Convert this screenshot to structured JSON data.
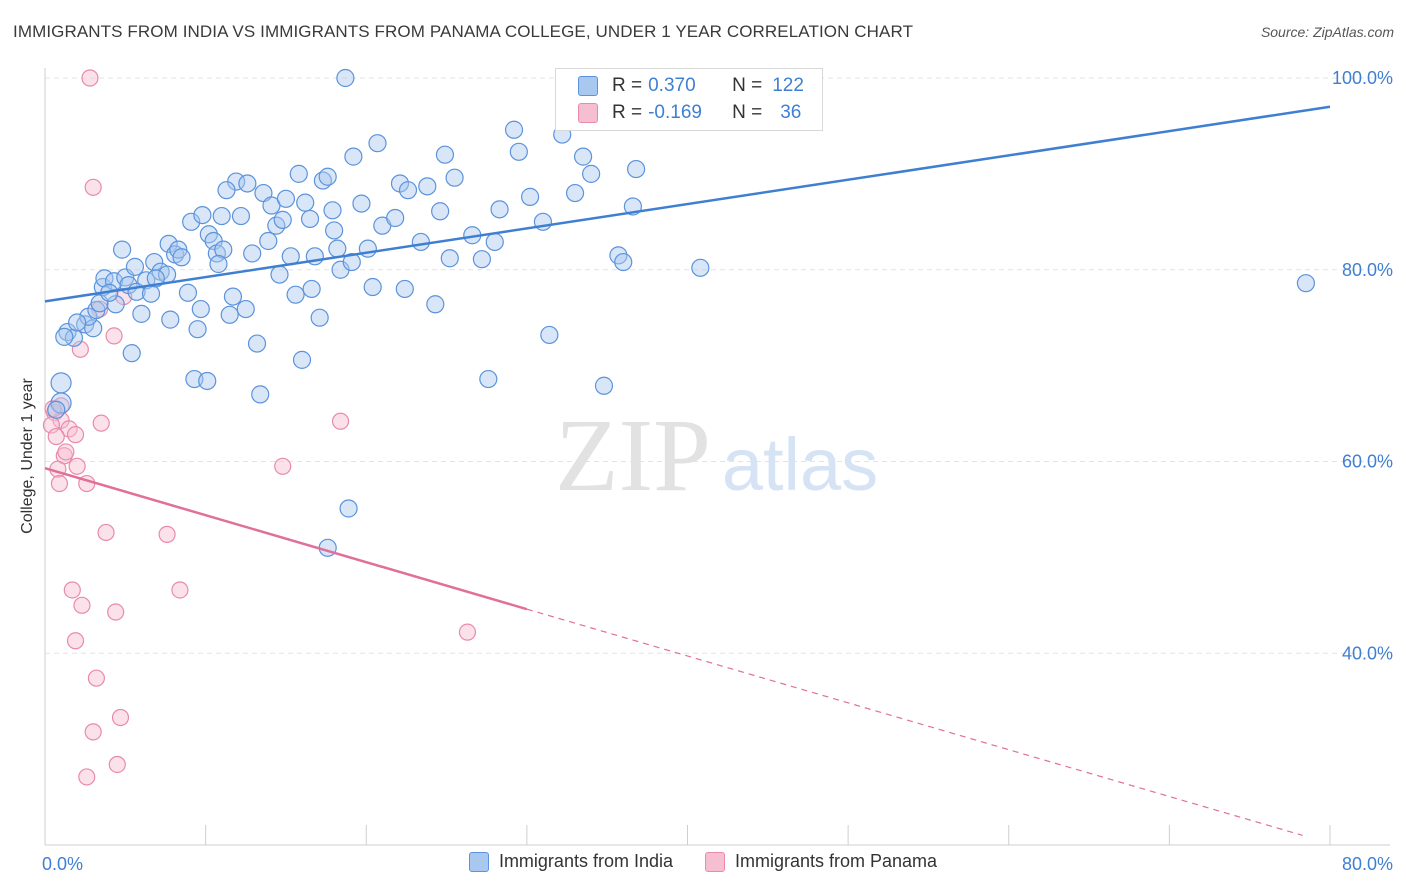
{
  "title": "IMMIGRANTS FROM INDIA VS IMMIGRANTS FROM PANAMA COLLEGE, UNDER 1 YEAR CORRELATION CHART",
  "source": "Source: ZipAtlas.com",
  "watermark": {
    "zip": "ZIP",
    "atlas": "atlas"
  },
  "legend": {
    "rows": [
      {
        "r_label": "R =",
        "r_value": "0.370",
        "n_label": "N =",
        "n_value": "122"
      },
      {
        "r_label": "R =",
        "r_value": "-0.169",
        "n_label": "N =",
        "n_value": "36"
      }
    ]
  },
  "colors": {
    "india_fill": "#a8c8f0",
    "india_stroke": "#5b93dc",
    "india_line": "#3f7fd2",
    "panama_fill": "#f6bfd1",
    "panama_stroke": "#e98aab",
    "panama_line": "#e0709a",
    "axis_text": "#3f7fd2",
    "grid": "#e3e3e3"
  },
  "chart_data": {
    "type": "scatter",
    "xlabel": "",
    "ylabel": "College, Under 1 year",
    "xlim": [
      0,
      80
    ],
    "ylim": [
      20,
      100
    ],
    "x_tick_labels": [
      {
        "value": 0,
        "label": "0.0%"
      },
      {
        "value": 80,
        "label": "80.0%"
      }
    ],
    "y_tick_labels": [
      {
        "value": 100,
        "label": "100.0%"
      },
      {
        "value": 80,
        "label": "80.0%"
      },
      {
        "value": 60,
        "label": "60.0%"
      },
      {
        "value": 40,
        "label": "40.0%"
      }
    ],
    "grid": true,
    "series": [
      {
        "name": "Immigrants from India",
        "R": 0.37,
        "N": 122,
        "trend": {
          "x0": 0,
          "y0": 76.7,
          "x1": 80,
          "y1": 97.0
        },
        "points": [
          [
            1.0,
            68.2
          ],
          [
            1.0,
            66.1
          ],
          [
            0.7,
            65.4
          ],
          [
            1.4,
            73.5
          ],
          [
            1.8,
            72.9
          ],
          [
            2.5,
            74.3
          ],
          [
            3.0,
            73.9
          ],
          [
            2.7,
            75.1
          ],
          [
            3.2,
            75.8
          ],
          [
            3.4,
            76.5
          ],
          [
            3.6,
            78.2
          ],
          [
            3.7,
            79.1
          ],
          [
            4.3,
            78.8
          ],
          [
            4.4,
            76.4
          ],
          [
            4.8,
            82.1
          ],
          [
            5.0,
            79.2
          ],
          [
            5.2,
            78.4
          ],
          [
            5.4,
            71.3
          ],
          [
            5.7,
            77.7
          ],
          [
            6.0,
            75.4
          ],
          [
            6.3,
            78.9
          ],
          [
            6.6,
            77.5
          ],
          [
            6.8,
            80.8
          ],
          [
            7.2,
            79.8
          ],
          [
            7.6,
            79.5
          ],
          [
            7.8,
            74.8
          ],
          [
            7.7,
            82.7
          ],
          [
            8.1,
            81.6
          ],
          [
            8.3,
            82.1
          ],
          [
            8.5,
            81.3
          ],
          [
            8.9,
            77.6
          ],
          [
            9.1,
            85.0
          ],
          [
            9.3,
            68.6
          ],
          [
            9.5,
            73.8
          ],
          [
            9.8,
            85.7
          ],
          [
            10.1,
            68.4
          ],
          [
            10.2,
            83.7
          ],
          [
            10.5,
            83.0
          ],
          [
            10.7,
            81.7
          ],
          [
            11.0,
            85.6
          ],
          [
            11.1,
            82.1
          ],
          [
            11.5,
            75.3
          ],
          [
            11.7,
            77.2
          ],
          [
            11.9,
            89.2
          ],
          [
            12.2,
            85.6
          ],
          [
            12.5,
            75.9
          ],
          [
            12.6,
            89.0
          ],
          [
            12.9,
            81.7
          ],
          [
            13.2,
            72.3
          ],
          [
            13.4,
            67.0
          ],
          [
            13.6,
            88.0
          ],
          [
            13.9,
            83.0
          ],
          [
            14.1,
            86.7
          ],
          [
            14.4,
            84.6
          ],
          [
            14.8,
            85.2
          ],
          [
            15.0,
            87.4
          ],
          [
            15.3,
            81.4
          ],
          [
            15.6,
            77.4
          ],
          [
            15.8,
            90.0
          ],
          [
            16.0,
            70.6
          ],
          [
            16.2,
            87.0
          ],
          [
            16.5,
            85.3
          ],
          [
            16.8,
            81.4
          ],
          [
            17.1,
            75.0
          ],
          [
            17.3,
            89.3
          ],
          [
            17.6,
            89.7
          ],
          [
            17.9,
            86.2
          ],
          [
            18.2,
            82.2
          ],
          [
            18.4,
            80.0
          ],
          [
            18.7,
            100.0
          ],
          [
            19.1,
            80.8
          ],
          [
            19.2,
            91.8
          ],
          [
            19.7,
            86.9
          ],
          [
            20.1,
            82.2
          ],
          [
            20.4,
            78.2
          ],
          [
            20.7,
            93.2
          ],
          [
            21.0,
            84.6
          ],
          [
            22.1,
            89.0
          ],
          [
            22.4,
            78.0
          ],
          [
            22.6,
            88.3
          ],
          [
            23.4,
            82.9
          ],
          [
            23.8,
            88.7
          ],
          [
            24.3,
            76.4
          ],
          [
            24.6,
            86.1
          ],
          [
            24.9,
            92.0
          ],
          [
            25.2,
            81.2
          ],
          [
            25.5,
            89.6
          ],
          [
            27.2,
            81.1
          ],
          [
            27.6,
            68.6
          ],
          [
            28.0,
            82.9
          ],
          [
            28.3,
            86.3
          ],
          [
            29.2,
            94.6
          ],
          [
            29.5,
            92.3
          ],
          [
            30.2,
            87.6
          ],
          [
            31.4,
            73.2
          ],
          [
            32.2,
            94.1
          ],
          [
            33.0,
            88.0
          ],
          [
            33.5,
            91.8
          ],
          [
            34.0,
            90.0
          ],
          [
            34.8,
            67.9
          ],
          [
            35.7,
            81.5
          ],
          [
            36.0,
            80.8
          ],
          [
            36.6,
            86.6
          ],
          [
            36.8,
            90.5
          ],
          [
            40.8,
            80.2
          ],
          [
            78.5,
            78.6
          ],
          [
            18.9,
            55.1
          ],
          [
            17.6,
            51.0
          ],
          [
            1.2,
            73.0
          ],
          [
            2.0,
            74.5
          ],
          [
            4.0,
            77.6
          ],
          [
            5.6,
            80.3
          ],
          [
            6.9,
            79.1
          ],
          [
            9.7,
            75.9
          ],
          [
            10.8,
            80.6
          ],
          [
            11.3,
            88.3
          ],
          [
            14.6,
            79.5
          ],
          [
            16.6,
            78.0
          ],
          [
            18.0,
            84.1
          ],
          [
            21.8,
            85.4
          ],
          [
            26.6,
            83.6
          ],
          [
            31.0,
            85.0
          ]
        ]
      },
      {
        "name": "Immigrants from Panama",
        "R": -0.169,
        "N": 36,
        "trend": {
          "x0": 0,
          "y0": 59.3,
          "x1": 30.0,
          "y1": 44.6,
          "dash_x1": 78.3,
          "dash_y1": 21.0
        },
        "points": [
          [
            2.8,
            100.0
          ],
          [
            3.0,
            88.6
          ],
          [
            0.6,
            65.1
          ],
          [
            1.0,
            64.3
          ],
          [
            0.4,
            63.8
          ],
          [
            1.5,
            63.4
          ],
          [
            1.9,
            62.8
          ],
          [
            0.7,
            62.6
          ],
          [
            1.2,
            60.6
          ],
          [
            0.8,
            59.2
          ],
          [
            0.9,
            57.7
          ],
          [
            2.6,
            57.7
          ],
          [
            3.4,
            75.9
          ],
          [
            4.9,
            77.2
          ],
          [
            4.3,
            73.1
          ],
          [
            2.2,
            71.7
          ],
          [
            1.0,
            65.8
          ],
          [
            3.5,
            64.0
          ],
          [
            18.4,
            64.2
          ],
          [
            14.8,
            59.5
          ],
          [
            3.8,
            52.6
          ],
          [
            7.6,
            52.4
          ],
          [
            1.7,
            46.6
          ],
          [
            8.4,
            46.6
          ],
          [
            2.3,
            45.0
          ],
          [
            4.4,
            44.3
          ],
          [
            26.3,
            42.2
          ],
          [
            1.9,
            41.3
          ],
          [
            3.2,
            37.4
          ],
          [
            4.7,
            33.3
          ],
          [
            3.0,
            31.8
          ],
          [
            4.5,
            28.4
          ],
          [
            2.6,
            27.1
          ],
          [
            0.5,
            65.5
          ],
          [
            1.3,
            61.0
          ],
          [
            2.0,
            59.5
          ]
        ]
      }
    ]
  }
}
